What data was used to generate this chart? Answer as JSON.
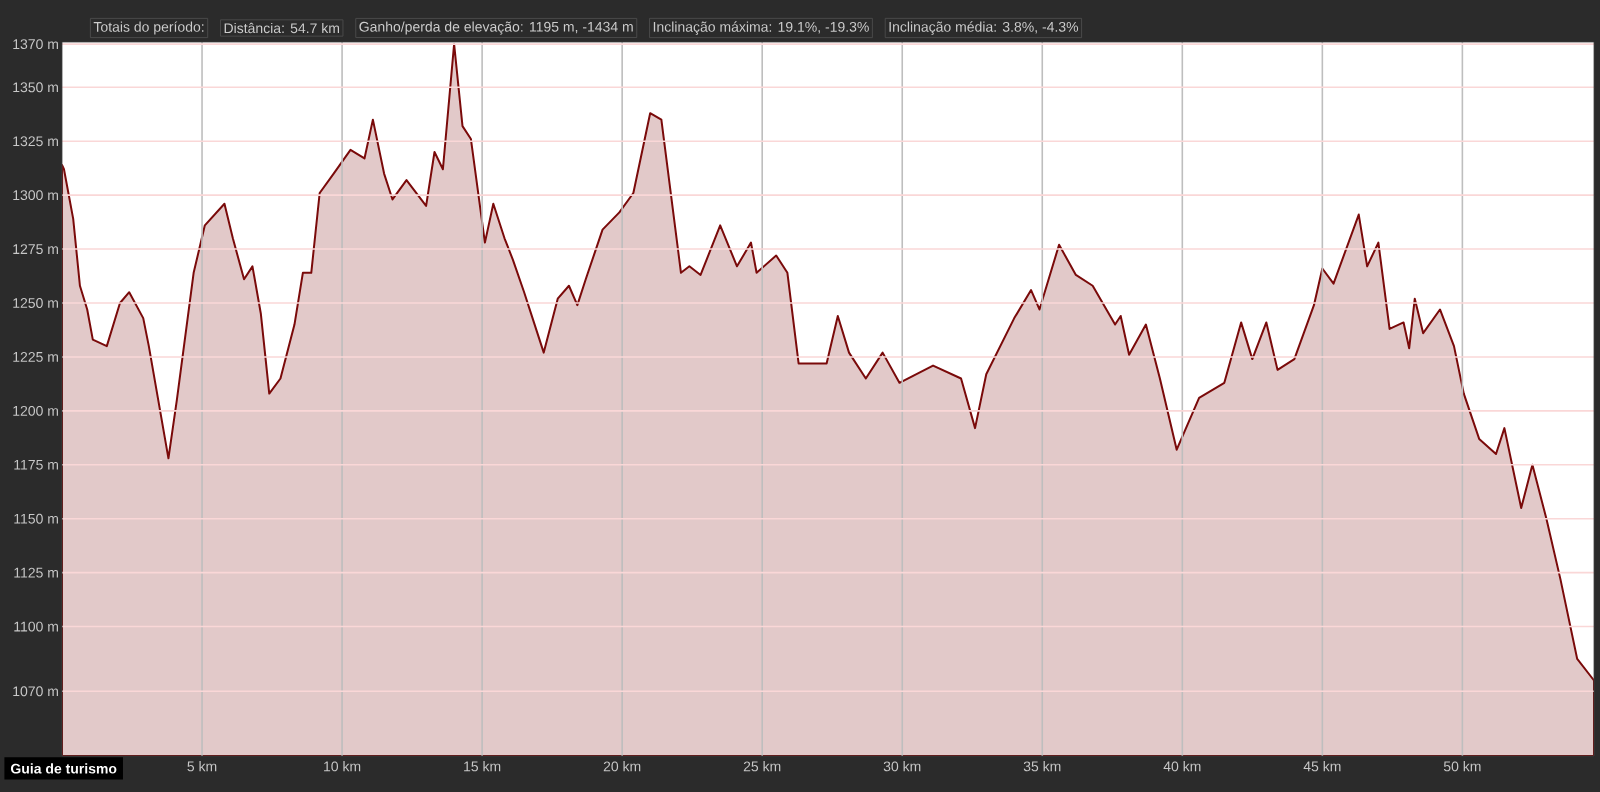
{
  "chart_data": {
    "type": "area",
    "annotations": [
      "Totais do período:",
      "Distância: 54.7 km",
      "Ganho/perda de elevação: 1195 m, -1434 m",
      "Inclinação máxima: 19.1%, -19.3%",
      "Inclinação média: 3.8%, -4.3%",
      "Guia de turismo"
    ],
    "xlim": [
      0,
      54.7
    ],
    "ylim": [
      1040,
      1371
    ],
    "xticks": [
      {
        "value": 5,
        "label": "5 km"
      },
      {
        "value": 10,
        "label": "10 km"
      },
      {
        "value": 15,
        "label": "15 km"
      },
      {
        "value": 20,
        "label": "20 km"
      },
      {
        "value": 25,
        "label": "25 km"
      },
      {
        "value": 30,
        "label": "30 km"
      },
      {
        "value": 35,
        "label": "35 km"
      },
      {
        "value": 40,
        "label": "40 km"
      },
      {
        "value": 45,
        "label": "45 km"
      },
      {
        "value": 50,
        "label": "50 km"
      }
    ],
    "yticks": [
      {
        "value": 1070,
        "label": "1070 m"
      },
      {
        "value": 1100,
        "label": "1100 m"
      },
      {
        "value": 1125,
        "label": "1125 m"
      },
      {
        "value": 1150,
        "label": "1150 m"
      },
      {
        "value": 1175,
        "label": "1175 m"
      },
      {
        "value": 1200,
        "label": "1200 m"
      },
      {
        "value": 1225,
        "label": "1225 m"
      },
      {
        "value": 1250,
        "label": "1250 m"
      },
      {
        "value": 1275,
        "label": "1275 m"
      },
      {
        "value": 1300,
        "label": "1300 m"
      },
      {
        "value": 1325,
        "label": "1325 m"
      },
      {
        "value": 1350,
        "label": "1350 m"
      },
      {
        "value": 1370,
        "label": "1370 m"
      }
    ],
    "grid": true,
    "series": [
      {
        "color": "#7a0a0a",
        "x": [
          0,
          0.07,
          0.4,
          0.64,
          0.9,
          1.1,
          1.6,
          2.07,
          2.4,
          2.9,
          3.1,
          3.8,
          4.1,
          4.7,
          5.1,
          5.8,
          6.1,
          6.5,
          6.8,
          7.1,
          7.4,
          7.8,
          8.3,
          8.6,
          8.9,
          9.2,
          9.7,
          10.3,
          10.8,
          11.1,
          11.5,
          11.8,
          12.3,
          13,
          13.3,
          13.6,
          14.0,
          14.3,
          14.6,
          15.1,
          15.4,
          15.8,
          16.1,
          16.5,
          16.8,
          17.2,
          17.7,
          18.1,
          18.4,
          18.7,
          19.3,
          19.9,
          20.4,
          21,
          21.4,
          22.1,
          22.4,
          22.8,
          23.5,
          24.1,
          24.6,
          24.8,
          25.5,
          25.9,
          26.3,
          27.3,
          27.7,
          28.1,
          28.7,
          29.3,
          29.9,
          31.1,
          32.1,
          32.6,
          33,
          34,
          34.6,
          34.9,
          35.6,
          36.2,
          36.8,
          37.6,
          37.8,
          38.1,
          38.7,
          39.2,
          39.8,
          40.6,
          41.5,
          42.1,
          42.5,
          43,
          43.4,
          44,
          44.7,
          45.0,
          45.4,
          46.3,
          46.6,
          47,
          47.4,
          47.9,
          48.1,
          48.3,
          48.6,
          49.2,
          49.7,
          50.05,
          50.6,
          51.2,
          51.5,
          52.1,
          52.5,
          53.0,
          53.5,
          54.1,
          54.7
        ],
        "values": [
          1314,
          1312,
          1289,
          1258,
          1247,
          1233,
          1230,
          1250,
          1255,
          1243,
          1230,
          1178,
          1205,
          1264,
          1286,
          1296,
          1280,
          1261,
          1267,
          1245,
          1208,
          1215,
          1240,
          1264,
          1264,
          1301,
          1310,
          1321,
          1317,
          1335,
          1310,
          1298,
          1307,
          1295,
          1320,
          1312,
          1370,
          1332,
          1326,
          1278,
          1296,
          1280,
          1270,
          1255,
          1243,
          1227,
          1252,
          1258,
          1249,
          1261,
          1284,
          1292,
          1301,
          1338,
          1335,
          1264,
          1267,
          1263,
          1286,
          1267,
          1278,
          1264,
          1272,
          1264,
          1222,
          1222,
          1244,
          1227,
          1215,
          1227,
          1213,
          1221,
          1215,
          1192,
          1217,
          1243,
          1256,
          1247,
          1277,
          1263,
          1258,
          1240,
          1244,
          1226,
          1240,
          1215,
          1182,
          1206,
          1213,
          1241,
          1224,
          1241,
          1219,
          1224,
          1249,
          1266,
          1259,
          1291,
          1267,
          1278,
          1238,
          1241,
          1229,
          1252,
          1236,
          1247,
          1230,
          1208,
          1187,
          1180,
          1192,
          1155,
          1175,
          1150,
          1122,
          1085,
          1075
        ]
      }
    ]
  }
}
